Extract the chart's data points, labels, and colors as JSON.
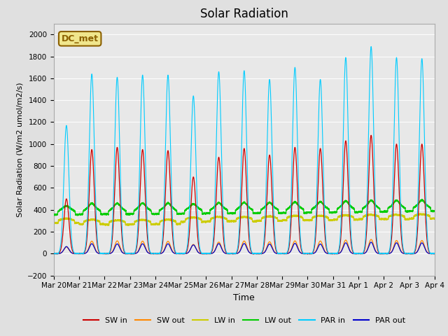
{
  "title": "Solar Radiation",
  "ylabel": "Solar Radiation (W/m2 umol/m2/s)",
  "xlabel": "Time",
  "ylim": [
    -200,
    2100
  ],
  "yticks": [
    -200,
    0,
    200,
    400,
    600,
    800,
    1000,
    1200,
    1400,
    1600,
    1800,
    2000
  ],
  "background_color": "#e0e0e0",
  "plot_bg_color": "#e8e8e8",
  "annotation_text": "DC_met",
  "annotation_color": "#8b6000",
  "annotation_bg": "#f0e68c",
  "num_days": 15,
  "legend_entries": [
    "SW in",
    "SW out",
    "LW in",
    "LW out",
    "PAR in",
    "PAR out"
  ],
  "line_colors": [
    "#cc0000",
    "#ff8800",
    "#cccc00",
    "#00cc00",
    "#00ccff",
    "#0000cc"
  ],
  "x_tick_labels": [
    "Mar 20",
    "Mar 21",
    "Mar 22",
    "Mar 23",
    "Mar 24",
    "Mar 25",
    "Mar 26",
    "Mar 27",
    "Mar 28",
    "Mar 29",
    "Mar 30",
    "Mar 31",
    "Apr 1",
    "Apr 2",
    "Apr 3",
    "Apr 4"
  ],
  "sw_in_peaks": [
    500,
    950,
    970,
    950,
    940,
    700,
    880,
    960,
    900,
    970,
    960,
    1030,
    1080,
    1000,
    1000
  ],
  "par_in_peaks": [
    1170,
    1640,
    1610,
    1630,
    1630,
    1440,
    1660,
    1670,
    1590,
    1700,
    1590,
    1790,
    1890,
    1790,
    1780
  ],
  "lw_in_day_base": [
    280,
    270,
    265,
    268,
    270,
    290,
    295,
    295,
    300,
    305,
    305,
    310,
    315,
    315,
    320
  ],
  "lw_out_day_base": [
    355,
    360,
    360,
    362,
    363,
    365,
    368,
    368,
    370,
    372,
    375,
    378,
    382,
    385,
    388
  ]
}
